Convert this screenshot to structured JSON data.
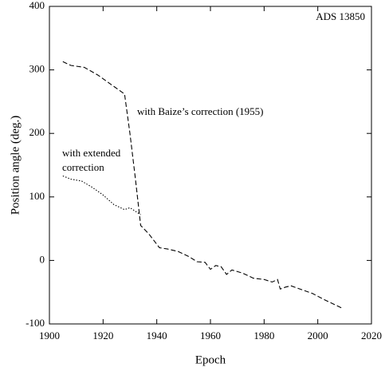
{
  "chart_data": {
    "type": "line",
    "xlabel": "Epoch",
    "ylabel": "Position angle (deg.)",
    "xlim": [
      1900,
      2020
    ],
    "xticks": [
      1900,
      1920,
      1940,
      1960,
      1980,
      2000,
      2020
    ],
    "ylim": [
      -100,
      400
    ],
    "yticks": [
      -100,
      0,
      100,
      200,
      300,
      400
    ],
    "annotations": [
      "ADS 13850",
      "with Baize’s correction (1955)",
      "with extended",
      "correction"
    ],
    "series": [
      {
        "name": "with Baize’s correction (1955)",
        "color": "#000000",
        "dash": "6,3",
        "x": [
          1905,
          1908,
          1913,
          1918,
          1923,
          1928,
          1930,
          1932,
          1934,
          1937,
          1941,
          1944,
          1948,
          1952,
          1955,
          1958,
          1960,
          1962,
          1964,
          1966,
          1968,
          1972,
          1976,
          1980,
          1983,
          1985,
          1986,
          1988,
          1990,
          1994,
          1998,
          2003,
          2009
        ],
        "values": [
          313,
          307,
          304,
          292,
          277,
          262,
          200,
          130,
          55,
          42,
          20,
          18,
          14,
          6,
          -2,
          -3,
          -14,
          -8,
          -10,
          -22,
          -15,
          -20,
          -28,
          -30,
          -34,
          -30,
          -45,
          -42,
          -40,
          -46,
          -52,
          -63,
          -75
        ]
      },
      {
        "name": "with extended correction",
        "color": "#000000",
        "dash": "1.5,2",
        "x": [
          1905,
          1908,
          1912,
          1916,
          1920,
          1924,
          1928,
          1930,
          1934
        ],
        "values": [
          133,
          128,
          125,
          115,
          103,
          88,
          80,
          83,
          72
        ]
      }
    ]
  }
}
